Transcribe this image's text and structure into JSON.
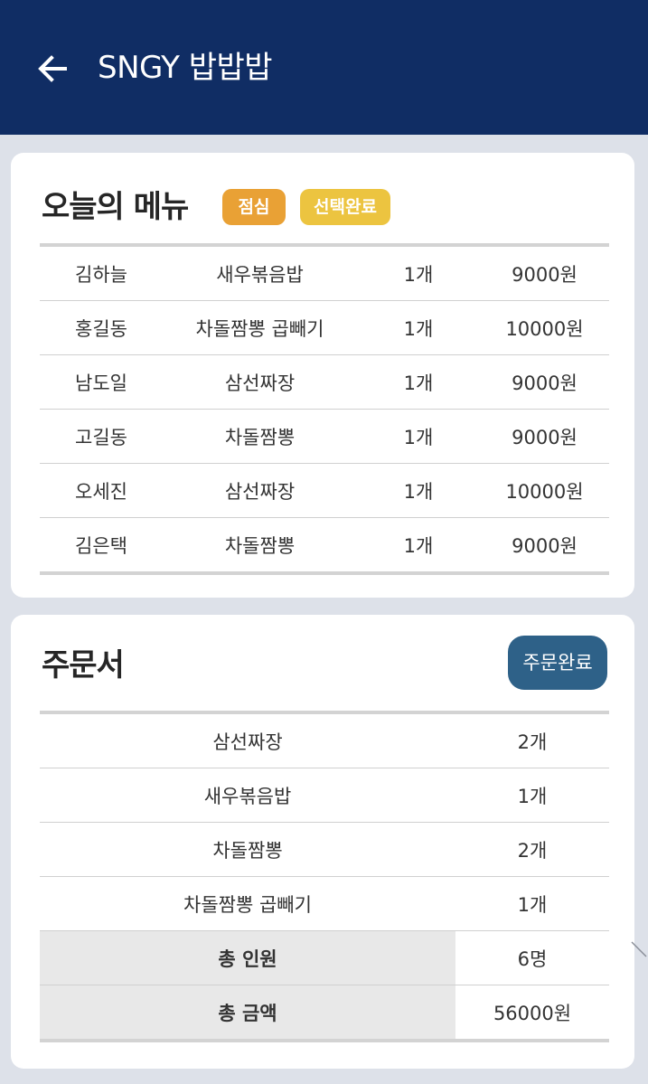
{
  "app_bar": {
    "title": "SNGY 밥밥밥",
    "back_icon": "arrow-left-icon"
  },
  "menu_card": {
    "title": "오늘의 메뉴",
    "badges": [
      "점심",
      "선택완료"
    ],
    "badge_colors": [
      "#e9a135",
      "#ecc440"
    ],
    "rows": [
      {
        "name": "김하늘",
        "menu": "새우볶음밥",
        "qty": "1개",
        "price": "9000원"
      },
      {
        "name": "홍길동",
        "menu": "차돌짬뽕 곱빼기",
        "qty": "1개",
        "price": "10000원"
      },
      {
        "name": "남도일",
        "menu": "삼선짜장",
        "qty": "1개",
        "price": "9000원"
      },
      {
        "name": "고길동",
        "menu": "차돌짬뽕",
        "qty": "1개",
        "price": "9000원"
      },
      {
        "name": "오세진",
        "menu": "삼선짜장",
        "qty": "1개",
        "price": "10000원"
      },
      {
        "name": "김은택",
        "menu": "차돌짬뽕",
        "qty": "1개",
        "price": "9000원"
      }
    ]
  },
  "order_card": {
    "title": "주문서",
    "complete_label": "주문완료",
    "items": [
      {
        "menu": "삼선짜장",
        "qty": "2개"
      },
      {
        "menu": "새우볶음밥",
        "qty": "1개"
      },
      {
        "menu": "차돌짬뽕",
        "qty": "2개"
      },
      {
        "menu": "차돌짬뽕 곱빼기",
        "qty": "1개"
      }
    ],
    "summary": [
      {
        "label": "총 인원",
        "value": "6명"
      },
      {
        "label": "총 금액",
        "value": "56000원"
      }
    ]
  },
  "colors": {
    "app_bar": "#102d64",
    "background": "#dde1e9",
    "complete_button": "#2e6188"
  }
}
